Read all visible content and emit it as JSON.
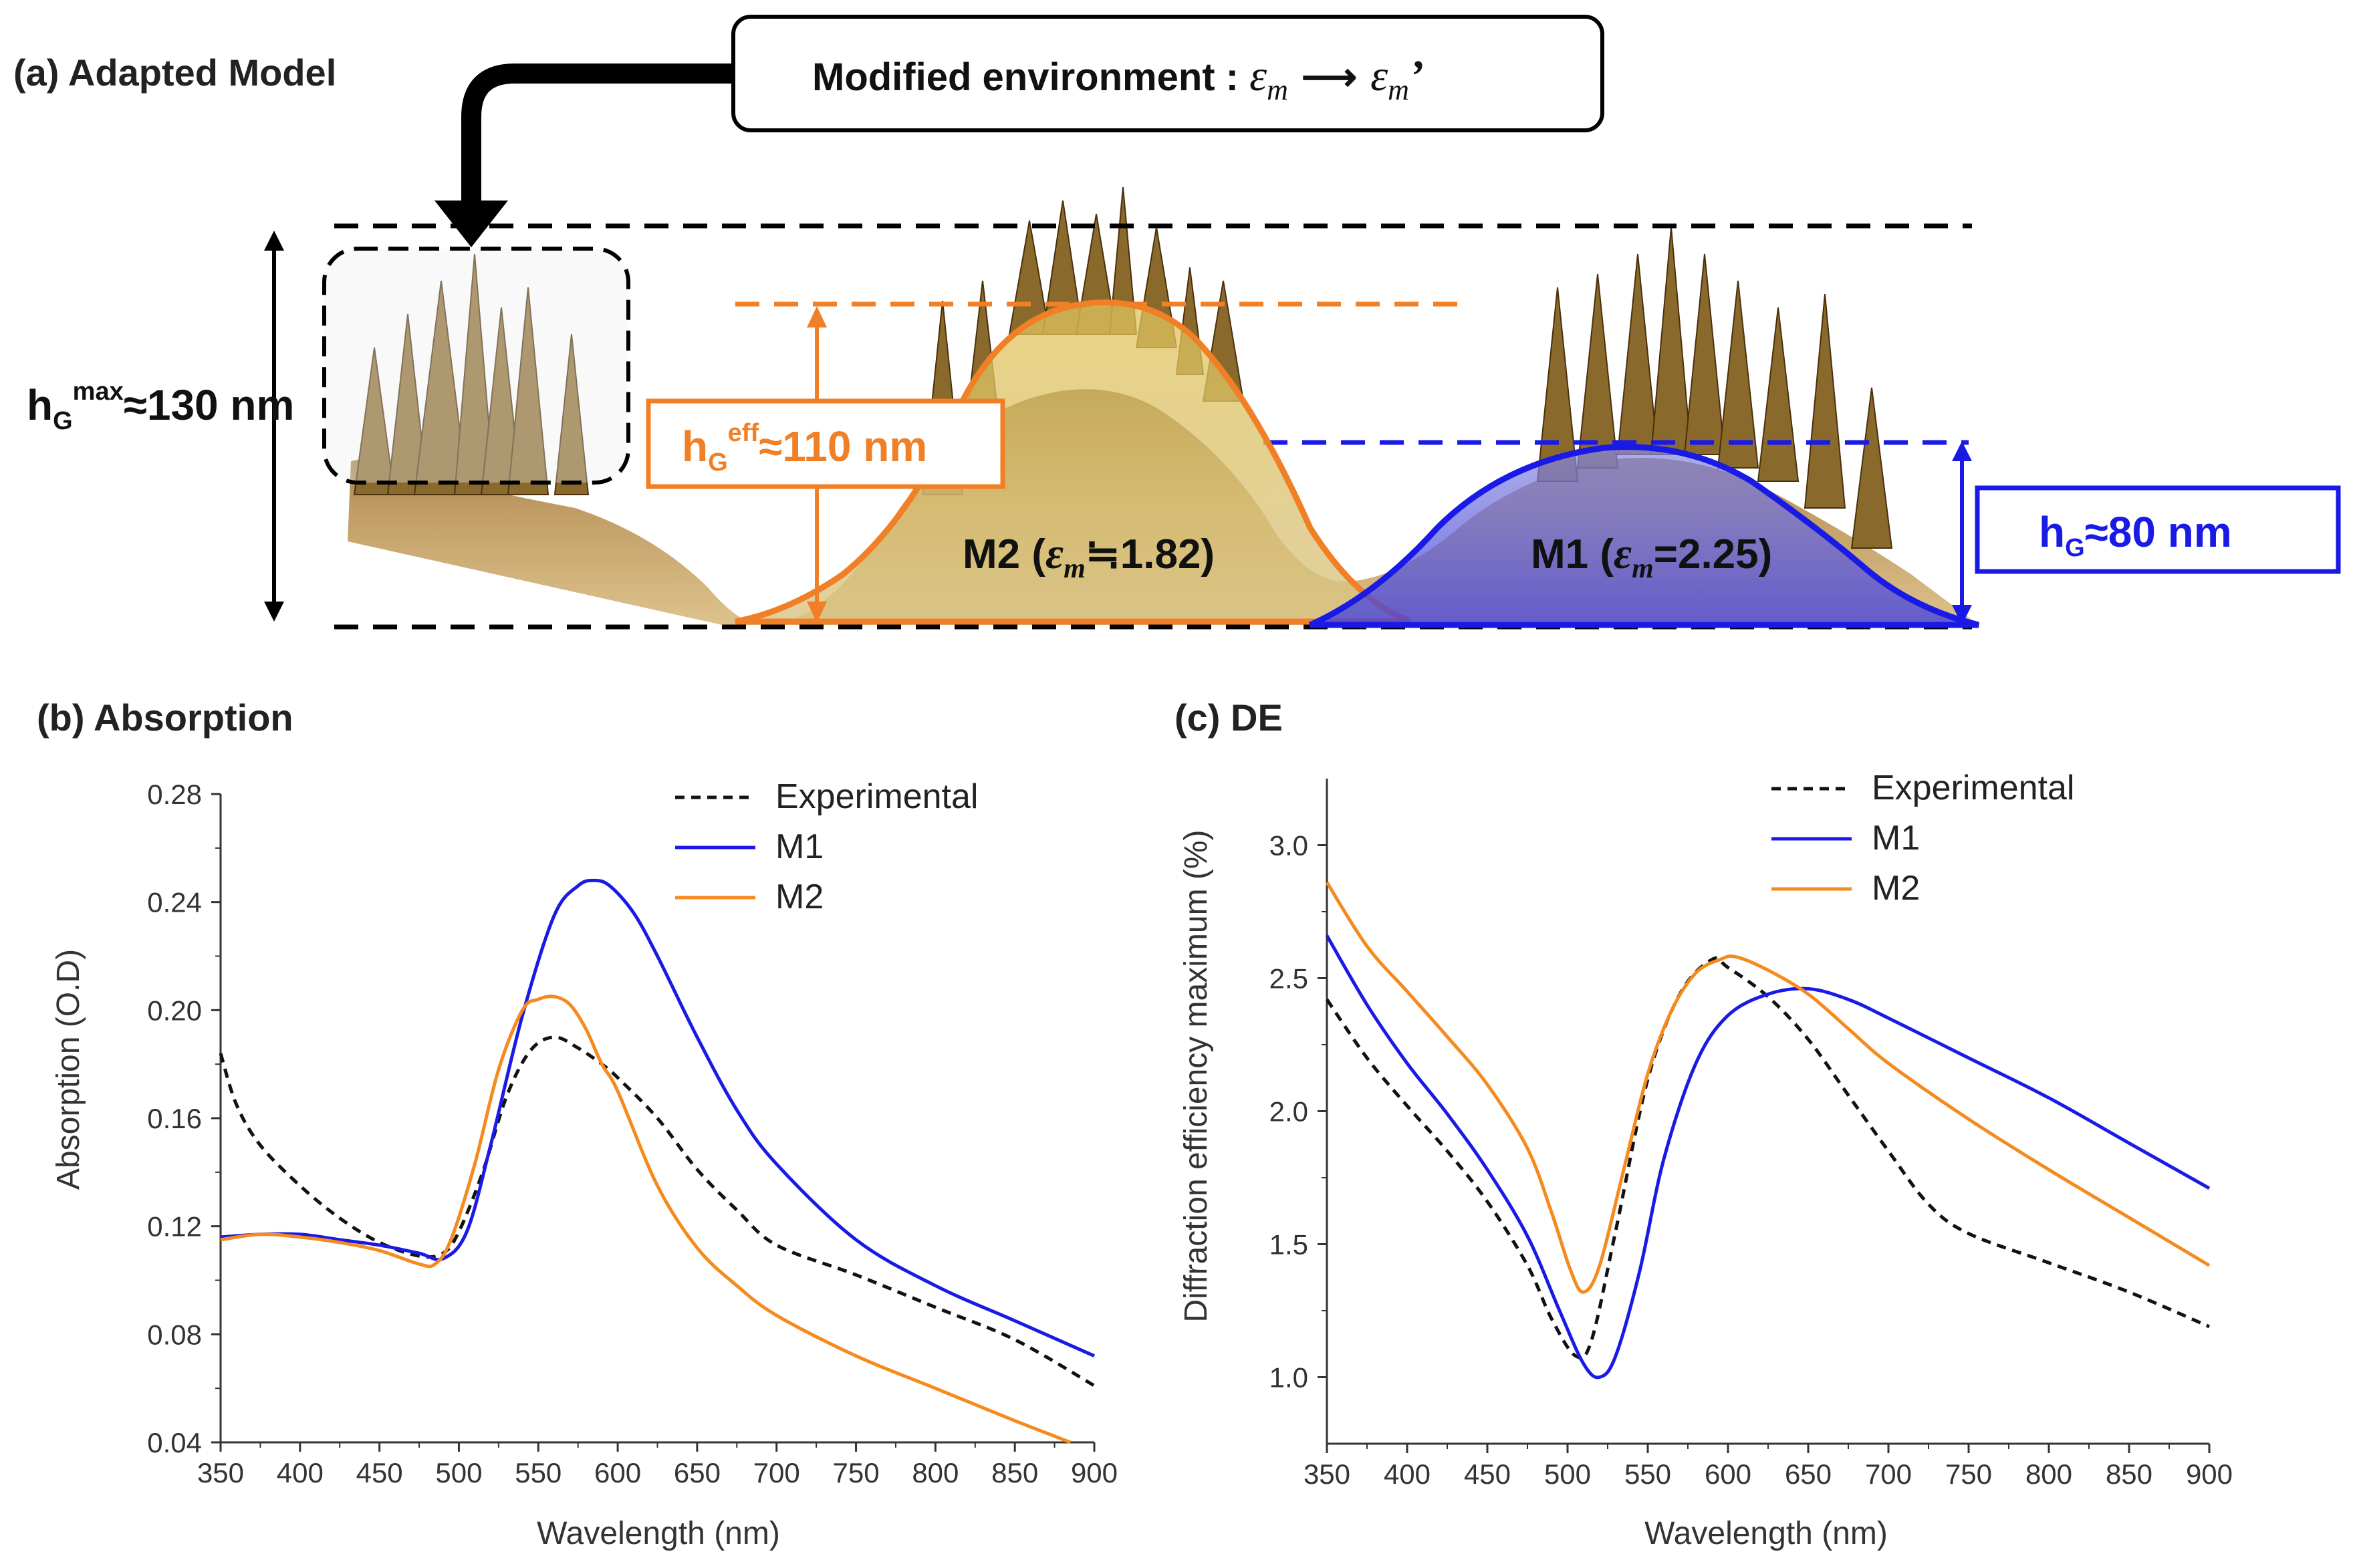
{
  "panel_a": {
    "title": "(a) Adapted Model",
    "env_box_text": "Modified environment : ",
    "env_eps": "ε",
    "env_sub_m": "m",
    "env_arrow": "⟶",
    "env_eps2": "ε",
    "env_sub_m2": "m",
    "env_prime": "’",
    "hmax_h": "h",
    "hmax_sub": "G",
    "hmax_sup": "max",
    "hmax_value": "≈130 nm",
    "heff_h": "h",
    "heff_sub": "G",
    "heff_sup": "eff",
    "heff_value": "≈110 nm",
    "hg_h": "h",
    "hg_sub": "G",
    "hg_value": "≈80 nm",
    "m2_label_pre": "M2 (",
    "m2_eps": "ε",
    "m2_sub": "m",
    "m2_label_post": "≒1.82)",
    "m1_label_pre": "M1 (",
    "m1_eps": "ε",
    "m1_sub": "m",
    "m1_label_post": "=2.25)",
    "colors": {
      "orange": "#f07f26",
      "blue": "#1a1ae6",
      "black": "#000000",
      "terrain": "#a07c3c"
    }
  },
  "chart_data": [
    {
      "id": "b",
      "type": "line",
      "title": "(b) Absorption",
      "xlabel": "Wavelength (nm)",
      "ylabel": "Absorption (O.D)",
      "xlim": [
        350,
        900
      ],
      "ylim": [
        0.04,
        0.28
      ],
      "xticks": [
        350,
        400,
        450,
        500,
        550,
        600,
        650,
        700,
        750,
        800,
        850,
        900
      ],
      "yticks": [
        0.04,
        0.08,
        0.12,
        0.16,
        0.2,
        0.24,
        0.28
      ],
      "ytick_labels": [
        "0.04",
        "0.08",
        "0.12",
        "0.16",
        "0.20",
        "0.24",
        "0.28"
      ],
      "legend_position": "top-right",
      "series": [
        {
          "name": "Experimental",
          "color": "#111111",
          "dash": true,
          "x": [
            350,
            360,
            375,
            400,
            425,
            450,
            475,
            490,
            500,
            515,
            530,
            545,
            560,
            575,
            590,
            600,
            625,
            650,
            675,
            700,
            750,
            800,
            850,
            900
          ],
          "y": [
            0.184,
            0.165,
            0.15,
            0.135,
            0.123,
            0.114,
            0.109,
            0.11,
            0.118,
            0.14,
            0.168,
            0.185,
            0.19,
            0.186,
            0.18,
            0.175,
            0.16,
            0.141,
            0.126,
            0.113,
            0.102,
            0.09,
            0.078,
            0.061
          ]
        },
        {
          "name": "M1",
          "color": "#1a1ae6",
          "dash": false,
          "x": [
            350,
            375,
            400,
            425,
            450,
            475,
            490,
            505,
            520,
            540,
            560,
            575,
            585,
            595,
            610,
            625,
            650,
            675,
            700,
            750,
            800,
            850,
            900
          ],
          "y": [
            0.116,
            0.117,
            0.117,
            0.115,
            0.113,
            0.11,
            0.108,
            0.118,
            0.15,
            0.198,
            0.235,
            0.246,
            0.248,
            0.246,
            0.236,
            0.22,
            0.19,
            0.163,
            0.143,
            0.115,
            0.098,
            0.085,
            0.072
          ]
        },
        {
          "name": "M2",
          "color": "#f58a1f",
          "dash": false,
          "x": [
            350,
            375,
            400,
            425,
            450,
            475,
            485,
            495,
            510,
            525,
            540,
            550,
            560,
            570,
            580,
            590,
            600,
            625,
            650,
            675,
            700,
            750,
            800,
            850,
            885
          ],
          "y": [
            0.115,
            0.117,
            0.116,
            0.114,
            0.111,
            0.106,
            0.106,
            0.115,
            0.143,
            0.178,
            0.2,
            0.204,
            0.205,
            0.202,
            0.193,
            0.18,
            0.17,
            0.135,
            0.112,
            0.098,
            0.087,
            0.072,
            0.06,
            0.048,
            0.04
          ]
        }
      ]
    },
    {
      "id": "c",
      "type": "line",
      "title": "(c) DE",
      "xlabel": "Wavelength (nm)",
      "ylabel": "Diffraction efficiency maximum (%)",
      "xlim": [
        350,
        900
      ],
      "ylim": [
        0.75,
        3.25
      ],
      "xticks": [
        350,
        400,
        450,
        500,
        550,
        600,
        650,
        700,
        750,
        800,
        850,
        900
      ],
      "yticks": [
        1.0,
        1.5,
        2.0,
        2.5,
        3.0
      ],
      "ytick_labels": [
        "1.0",
        "1.5",
        "2.0",
        "2.5",
        "3.0"
      ],
      "legend_position": "top-right",
      "series": [
        {
          "name": "Experimental",
          "color": "#111111",
          "dash": true,
          "x": [
            350,
            375,
            400,
            425,
            450,
            475,
            490,
            505,
            515,
            530,
            550,
            570,
            590,
            600,
            625,
            650,
            675,
            700,
            725,
            750,
            800,
            850,
            900
          ],
          "y": [
            2.42,
            2.2,
            2.02,
            1.85,
            1.66,
            1.42,
            1.22,
            1.08,
            1.14,
            1.55,
            2.12,
            2.44,
            2.57,
            2.54,
            2.43,
            2.27,
            2.06,
            1.85,
            1.65,
            1.54,
            1.43,
            1.32,
            1.19
          ]
        },
        {
          "name": "M1",
          "color": "#1a1ae6",
          "dash": false,
          "x": [
            350,
            375,
            400,
            425,
            450,
            475,
            495,
            510,
            520,
            530,
            545,
            560,
            580,
            600,
            625,
            650,
            675,
            700,
            750,
            800,
            850,
            900
          ],
          "y": [
            2.66,
            2.4,
            2.18,
            1.99,
            1.78,
            1.53,
            1.25,
            1.05,
            1.0,
            1.08,
            1.4,
            1.82,
            2.18,
            2.36,
            2.44,
            2.46,
            2.42,
            2.35,
            2.2,
            2.05,
            1.88,
            1.71
          ]
        },
        {
          "name": "M2",
          "color": "#f58a1f",
          "dash": false,
          "x": [
            350,
            375,
            400,
            425,
            450,
            475,
            490,
            502,
            510,
            520,
            535,
            550,
            565,
            580,
            595,
            605,
            625,
            650,
            675,
            700,
            750,
            800,
            850,
            900
          ],
          "y": [
            2.86,
            2.62,
            2.45,
            2.28,
            2.1,
            1.86,
            1.62,
            1.4,
            1.32,
            1.42,
            1.78,
            2.14,
            2.38,
            2.52,
            2.57,
            2.58,
            2.53,
            2.44,
            2.31,
            2.18,
            1.97,
            1.78,
            1.6,
            1.42
          ]
        }
      ]
    }
  ]
}
